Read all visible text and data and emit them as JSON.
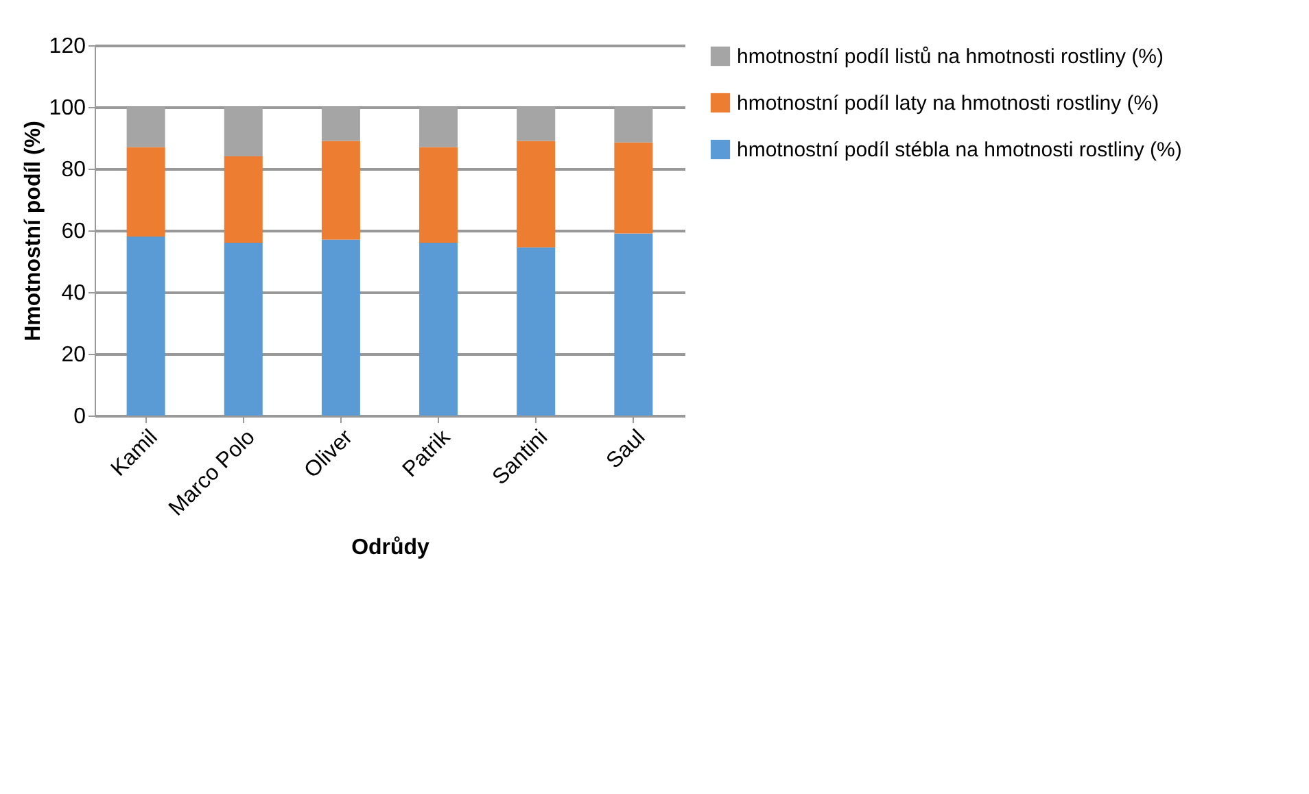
{
  "chart_data": {
    "type": "bar",
    "stacked": true,
    "xlabel": "Odrůdy",
    "ylabel": "Hmotnostní podíl (%)",
    "categories": [
      "Kamil",
      "Marco Polo",
      "Oliver",
      "Patrik",
      "Santini",
      "Saul"
    ],
    "series": [
      {
        "name": "hmotnostní podíl stébla na hmotnosti rostliny (%)",
        "color": "#5b9bd5",
        "values": [
          58,
          56,
          57,
          56,
          54.5,
          59
        ]
      },
      {
        "name": "hmotnostní podíl laty na hmotnosti rostliny (%)",
        "color": "#ed7d31",
        "values": [
          29,
          28,
          32,
          31,
          34.5,
          29.5
        ]
      },
      {
        "name": "hmotnostní podíl listů na hmotnosti rostliny (%)",
        "color": "#a5a5a5",
        "values": [
          13,
          16,
          11,
          13,
          11,
          11.5
        ]
      }
    ],
    "ylim": [
      0,
      120
    ],
    "yticks": [
      0,
      20,
      40,
      60,
      80,
      100,
      120
    ],
    "grid": "y",
    "legend": "right"
  }
}
